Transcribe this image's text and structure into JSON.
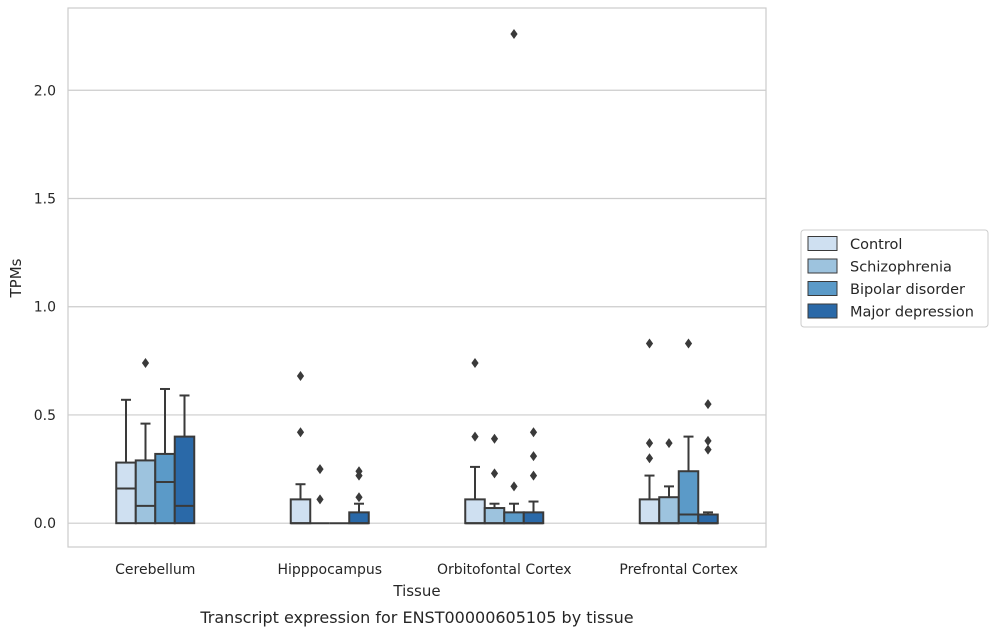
{
  "chart_data": {
    "type": "box",
    "xlabel": "Tissue",
    "ylabel": "TPMs",
    "caption": "Transcript expression for ENST00000605105 by tissue",
    "categories": [
      "Cerebellum",
      "Hipppocampus",
      "Orbitofontal Cortex",
      "Prefrontal Cortex"
    ],
    "y_ticks": [
      "0.0",
      "0.5",
      "1.0",
      "1.5",
      "2.0"
    ],
    "ylim": [
      -0.11,
      2.38
    ],
    "grid": "horizontal",
    "legend_position": "right",
    "series": [
      {
        "name": "Control",
        "color": "#cfe0f1",
        "boxes": [
          {
            "q1": 0.0,
            "median": 0.16,
            "q3": 0.28,
            "whisker_low": 0.0,
            "whisker_high": 0.57,
            "outliers": []
          },
          {
            "q1": 0.0,
            "median": 0.0,
            "q3": 0.11,
            "whisker_low": 0.0,
            "whisker_high": 0.18,
            "outliers": [
              0.42,
              0.68
            ]
          },
          {
            "q1": 0.0,
            "median": 0.0,
            "q3": 0.11,
            "whisker_low": 0.0,
            "whisker_high": 0.26,
            "outliers": [
              0.4,
              0.74
            ]
          },
          {
            "q1": 0.0,
            "median": 0.0,
            "q3": 0.11,
            "whisker_low": 0.0,
            "whisker_high": 0.22,
            "outliers": [
              0.3,
              0.37,
              0.83
            ]
          }
        ]
      },
      {
        "name": "Schizophrenia",
        "color": "#9dc3de",
        "boxes": [
          {
            "q1": 0.0,
            "median": 0.08,
            "q3": 0.29,
            "whisker_low": 0.0,
            "whisker_high": 0.46,
            "outliers": [
              0.74
            ]
          },
          {
            "q1": 0.0,
            "median": 0.0,
            "q3": 0.0,
            "whisker_low": 0.0,
            "whisker_high": 0.0,
            "outliers": [
              0.11,
              0.25
            ]
          },
          {
            "q1": 0.0,
            "median": 0.0,
            "q3": 0.07,
            "whisker_low": 0.0,
            "whisker_high": 0.09,
            "outliers": [
              0.23,
              0.39
            ]
          },
          {
            "q1": 0.0,
            "median": 0.0,
            "q3": 0.12,
            "whisker_low": 0.0,
            "whisker_high": 0.17,
            "outliers": [
              0.37
            ]
          }
        ]
      },
      {
        "name": "Bipolar disorder",
        "color": "#5b9ac8",
        "boxes": [
          {
            "q1": 0.0,
            "median": 0.19,
            "q3": 0.32,
            "whisker_low": 0.0,
            "whisker_high": 0.62,
            "outliers": []
          },
          {
            "q1": 0.0,
            "median": 0.0,
            "q3": 0.0,
            "whisker_low": 0.0,
            "whisker_high": 0.0,
            "outliers": []
          },
          {
            "q1": 0.0,
            "median": 0.0,
            "q3": 0.05,
            "whisker_low": 0.0,
            "whisker_high": 0.09,
            "outliers": [
              0.17,
              2.26
            ]
          },
          {
            "q1": 0.0,
            "median": 0.04,
            "q3": 0.24,
            "whisker_low": 0.0,
            "whisker_high": 0.4,
            "outliers": [
              0.83
            ]
          }
        ]
      },
      {
        "name": "Major depression",
        "color": "#2a69a8",
        "boxes": [
          {
            "q1": 0.0,
            "median": 0.08,
            "q3": 0.4,
            "whisker_low": 0.0,
            "whisker_high": 0.59,
            "outliers": []
          },
          {
            "q1": 0.0,
            "median": 0.0,
            "q3": 0.05,
            "whisker_low": 0.0,
            "whisker_high": 0.09,
            "outliers": [
              0.12,
              0.22,
              0.24
            ]
          },
          {
            "q1": 0.0,
            "median": 0.0,
            "q3": 0.05,
            "whisker_low": 0.0,
            "whisker_high": 0.1,
            "outliers": [
              0.22,
              0.31,
              0.42
            ]
          },
          {
            "q1": 0.0,
            "median": 0.0,
            "q3": 0.04,
            "whisker_low": 0.0,
            "whisker_high": 0.05,
            "outliers": [
              0.34,
              0.38,
              0.55
            ]
          }
        ]
      }
    ]
  }
}
